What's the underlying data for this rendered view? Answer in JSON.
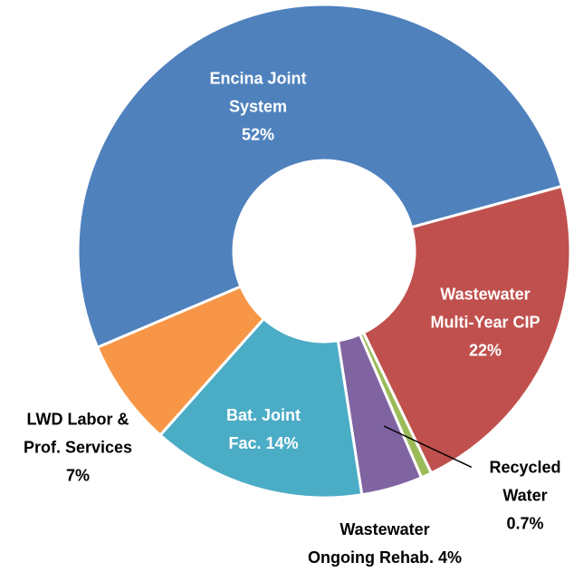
{
  "chart_data": {
    "type": "pie",
    "categories": [
      "Encina Joint System",
      "Wastewater Multi-Year CIP",
      "Recycled Water",
      "Wastewater Ongoing Rehab.",
      "Bat. Joint Fac.",
      "LWD Labor & Prof. Services"
    ],
    "values": [
      52,
      22,
      0.7,
      4,
      14,
      7
    ],
    "value_labels": [
      "52%",
      "22%",
      "0.7%",
      "4%",
      "14%",
      "7%"
    ],
    "colors": [
      "#4f81bd",
      "#c0504d",
      "#9bbb59",
      "#8064a2",
      "#4bacc6",
      "#f79646"
    ]
  }
}
